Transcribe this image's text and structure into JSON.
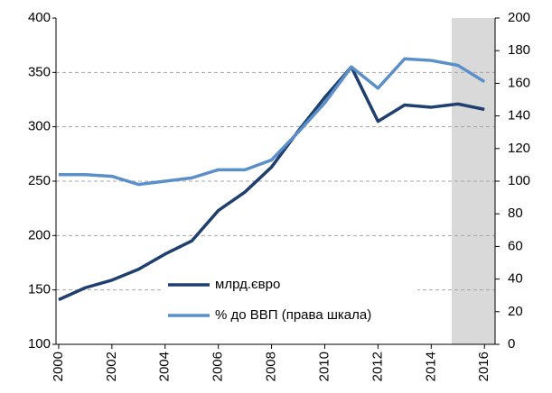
{
  "chart_data": {
    "type": "line",
    "x": [
      2000,
      2001,
      2002,
      2003,
      2004,
      2005,
      2006,
      2007,
      2008,
      2009,
      2010,
      2011,
      2012,
      2013,
      2014,
      2015,
      2016
    ],
    "series": [
      {
        "name": "млрд.євро",
        "color": "#1f3f6e",
        "values": [
          141,
          152,
          159,
          169,
          183,
          195,
          223,
          240,
          263,
          296,
          327,
          355,
          305,
          320,
          318,
          321,
          316
        ]
      },
      {
        "name": "% до ВВП (права шкала)",
        "color": "#5b8fc9",
        "axis": "y2",
        "values": [
          104,
          104,
          103,
          98,
          100,
          102,
          107,
          107,
          113,
          130,
          148,
          170,
          157,
          175,
          174,
          171,
          161
        ]
      }
    ],
    "xlim": [
      1999.9,
      2016.4
    ],
    "xticks": [
      2000,
      2002,
      2004,
      2006,
      2008,
      2010,
      2012,
      2014,
      2016
    ],
    "ylim": [
      100,
      400
    ],
    "yticks": [
      100,
      150,
      200,
      250,
      300,
      350,
      400
    ],
    "y2lim": [
      0,
      200
    ],
    "y2ticks": [
      0,
      20,
      40,
      60,
      80,
      100,
      120,
      140,
      160,
      180,
      200
    ],
    "grid": true
  }
}
